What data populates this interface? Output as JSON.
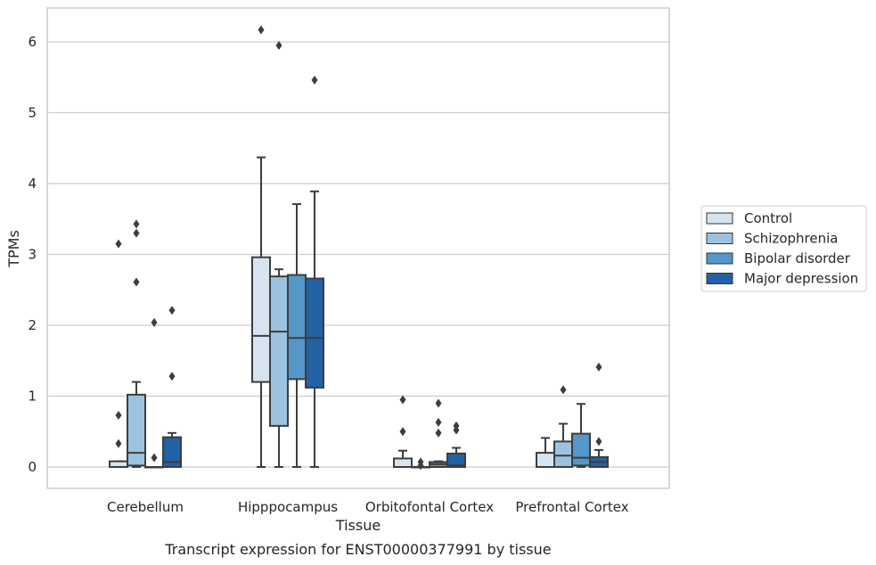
{
  "chart_data": {
    "type": "box",
    "categories": [
      "Cerebellum",
      "Hipppocampus",
      "Orbitofontal Cortex",
      "Prefrontal Cortex"
    ],
    "xlabel": "Tissue",
    "ylabel": "TPMs",
    "caption": "Transcript expression for ENST00000377991 by tissue",
    "ylim": [
      -0.3,
      6.5
    ],
    "yticks": [
      0,
      1,
      2,
      3,
      4,
      5,
      6
    ],
    "grid": true,
    "legend_position": "right",
    "colors": [
      "#d6e4f2",
      "#9bc3e0",
      "#5597c9",
      "#2361a5"
    ],
    "series": [
      {
        "name": "Control",
        "boxes": [
          {
            "whislo": 0,
            "q1": 0,
            "med": 0,
            "q3": 0.08,
            "whishi": 0.08,
            "fliers": [
              0.33,
              0.73,
              3.15
            ]
          },
          {
            "whislo": 0,
            "q1": 1.2,
            "med": 1.85,
            "q3": 2.96,
            "whishi": 4.37,
            "fliers": [
              6.17
            ]
          },
          {
            "whislo": 0,
            "q1": 0,
            "med": 0,
            "q3": 0.12,
            "whishi": 0.23,
            "fliers": [
              0.5,
              0.95
            ]
          },
          {
            "whislo": 0,
            "q1": 0,
            "med": 0,
            "q3": 0.2,
            "whishi": 0.41,
            "fliers": []
          }
        ]
      },
      {
        "name": "Schizophrenia",
        "boxes": [
          {
            "whislo": 0,
            "q1": 0.02,
            "med": 0.2,
            "q3": 1.02,
            "whishi": 1.2,
            "fliers": [
              2.61,
              3.3,
              3.43
            ]
          },
          {
            "whislo": 0,
            "q1": 0.58,
            "med": 1.91,
            "q3": 2.69,
            "whishi": 2.79,
            "fliers": [
              5.95
            ]
          },
          {
            "whislo": 0,
            "q1": 0,
            "med": 0,
            "q3": 0,
            "whishi": 0,
            "fliers": [
              0.02,
              0.07
            ]
          },
          {
            "whislo": 0,
            "q1": 0,
            "med": 0.16,
            "q3": 0.36,
            "whishi": 0.61,
            "fliers": [
              1.09
            ]
          }
        ]
      },
      {
        "name": "Bipolar disorder",
        "boxes": [
          {
            "whislo": 0,
            "q1": 0,
            "med": 0,
            "q3": 0,
            "whishi": 0,
            "fliers": [
              0.13,
              2.04
            ]
          },
          {
            "whislo": 0,
            "q1": 1.24,
            "med": 1.82,
            "q3": 2.71,
            "whishi": 3.71,
            "fliers": []
          },
          {
            "whislo": 0,
            "q1": 0,
            "med": 0.04,
            "q3": 0.07,
            "whishi": 0.08,
            "fliers": [
              0.48,
              0.63,
              0.9
            ]
          },
          {
            "whislo": 0,
            "q1": 0.02,
            "med": 0.13,
            "q3": 0.47,
            "whishi": 0.89,
            "fliers": []
          }
        ]
      },
      {
        "name": "Major depression",
        "boxes": [
          {
            "whislo": 0,
            "q1": 0,
            "med": 0.07,
            "q3": 0.42,
            "whishi": 0.48,
            "fliers": [
              1.28,
              2.21
            ]
          },
          {
            "whislo": 0,
            "q1": 1.12,
            "med": 1.82,
            "q3": 2.66,
            "whishi": 3.89,
            "fliers": [
              5.46
            ]
          },
          {
            "whislo": 0,
            "q1": 0,
            "med": 0.02,
            "q3": 0.19,
            "whishi": 0.27,
            "fliers": [
              0.52,
              0.58
            ]
          },
          {
            "whislo": 0,
            "q1": 0,
            "med": 0.07,
            "q3": 0.14,
            "whishi": 0.24,
            "fliers": [
              0.36,
              1.41
            ]
          }
        ]
      }
    ]
  }
}
